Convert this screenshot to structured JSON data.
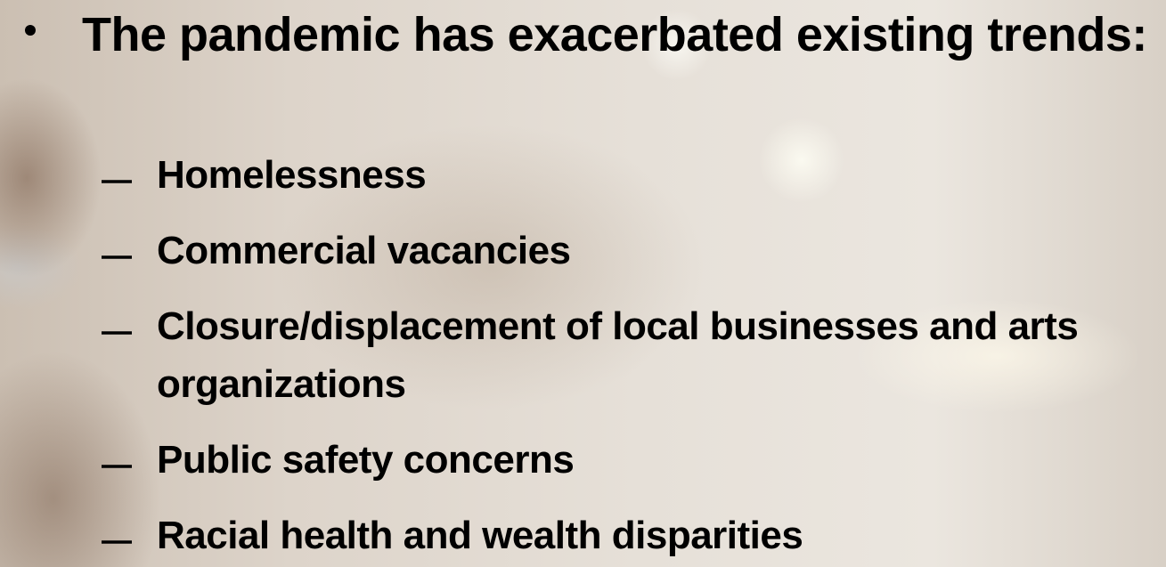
{
  "bullet": {
    "text": "The pandemic has exacerbated existing trends:",
    "subitems": [
      "Homelessness",
      "Commercial vacancies",
      "Closure/displacement of local businesses and arts organizations",
      "Public safety concerns",
      "Racial health and wealth disparities"
    ]
  }
}
